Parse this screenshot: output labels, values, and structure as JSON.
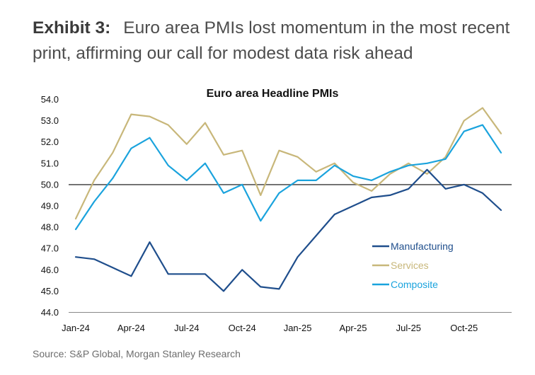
{
  "header": {
    "exhibit_label": "Exhibit 3:",
    "exhibit_title": "Euro area PMIs lost momentum in the most recent print, affirming our call for modest data risk ahead"
  },
  "source": "Source: S&P Global, Morgan Stanley Research",
  "chart_data": {
    "type": "line",
    "title": "Euro area Headline PMIs",
    "xlabel": "",
    "ylabel": "",
    "ylim": [
      44.0,
      54.0
    ],
    "yticks": [
      "44.0",
      "45.0",
      "46.0",
      "47.0",
      "48.0",
      "49.0",
      "50.0",
      "51.0",
      "52.0",
      "53.0",
      "54.0"
    ],
    "x": [
      "Jan-24",
      "Feb-24",
      "Mar-24",
      "Apr-24",
      "May-24",
      "Jun-24",
      "Jul-24",
      "Aug-24",
      "Sep-24",
      "Oct-24",
      "Nov-24",
      "Dec-24",
      "Jan-25",
      "Feb-25",
      "Mar-25",
      "Apr-25",
      "May-25",
      "Jun-25",
      "Jul-25",
      "Aug-25",
      "Sep-25",
      "Oct-25",
      "Nov-25",
      "Dec-25"
    ],
    "xtick_labels": [
      "Jan-24",
      "Apr-24",
      "Jul-24",
      "Oct-24",
      "Jan-25",
      "Apr-25",
      "Jul-25",
      "Oct-25"
    ],
    "reference_line": 50.0,
    "legend_position": "lower-right",
    "series": [
      {
        "name": "Manufacturing",
        "color": "#1f4e8c",
        "values": [
          46.6,
          46.5,
          46.1,
          45.7,
          47.3,
          45.8,
          45.8,
          45.8,
          45.0,
          46.0,
          45.2,
          45.1,
          46.6,
          47.6,
          48.6,
          49.0,
          49.4,
          49.5,
          49.8,
          50.7,
          49.8,
          50.0,
          49.6,
          48.8
        ]
      },
      {
        "name": "Services",
        "color": "#c8b77a",
        "values": [
          48.4,
          50.2,
          51.5,
          53.3,
          53.2,
          52.8,
          51.9,
          52.9,
          51.4,
          51.6,
          49.5,
          51.6,
          51.3,
          50.6,
          51.0,
          50.1,
          49.7,
          50.5,
          51.0,
          50.5,
          51.3,
          53.0,
          53.6,
          52.4
        ]
      },
      {
        "name": "Composite",
        "color": "#1aa3dd",
        "values": [
          47.9,
          49.2,
          50.3,
          51.7,
          52.2,
          50.9,
          50.2,
          51.0,
          49.6,
          50.0,
          48.3,
          49.6,
          50.2,
          50.2,
          50.9,
          50.4,
          50.2,
          50.6,
          50.9,
          51.0,
          51.2,
          52.5,
          52.8,
          51.5
        ]
      }
    ]
  }
}
